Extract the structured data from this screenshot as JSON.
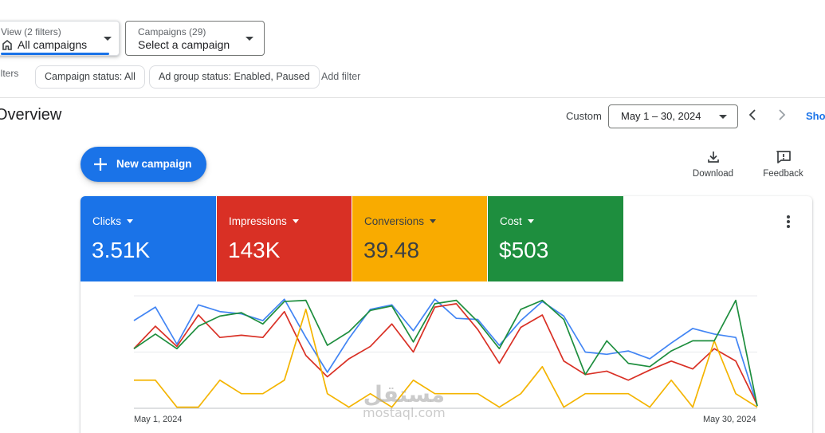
{
  "view_filter": {
    "label": "View (2 filters)",
    "value": "All campaigns",
    "icon": "building-icon"
  },
  "campaign_select": {
    "label": "Campaigns (29)",
    "value": "Select a campaign"
  },
  "filters": {
    "label": "ilters",
    "chips": [
      "Campaign status: All",
      "Ad group status: Enabled, Paused"
    ],
    "add_filter": "Add filter"
  },
  "overview": {
    "title": "Overview",
    "date_range_label": "Custom",
    "date_range_value": "May 1 – 30, 2024",
    "show_link": "Sho"
  },
  "actions": {
    "new_campaign": "New campaign",
    "download": "Download",
    "feedback": "Feedback"
  },
  "metrics": [
    {
      "label": "Clicks",
      "value": "3.51K",
      "color": "#1a73e8",
      "text_color": "#ffffff"
    },
    {
      "label": "Impressions",
      "value": "143K",
      "color": "#d93025",
      "text_color": "#ffffff"
    },
    {
      "label": "Conversions",
      "value": "39.48",
      "color": "#f9ab00",
      "text_color": "#3c4043"
    },
    {
      "label": "Cost",
      "value": "$503",
      "color": "#1e8e3e",
      "text_color": "#ffffff"
    }
  ],
  "chart_data": {
    "type": "line",
    "x_start_label": "May 1, 2024",
    "x_end_label": "May 30, 2024",
    "x": [
      1,
      2,
      3,
      4,
      5,
      6,
      7,
      8,
      9,
      10,
      11,
      12,
      13,
      14,
      15,
      16,
      17,
      18,
      19,
      20,
      21,
      22,
      23,
      24,
      25,
      26,
      27,
      28,
      29,
      30
    ],
    "ylim": [
      0,
      1
    ],
    "grid": true,
    "series": [
      {
        "name": "Clicks",
        "color": "#4285f4",
        "values": [
          0.78,
          0.9,
          0.57,
          0.92,
          0.86,
          0.84,
          0.78,
          0.97,
          0.63,
          0.32,
          0.62,
          0.88,
          0.92,
          0.69,
          0.97,
          0.8,
          0.79,
          0.56,
          0.78,
          0.95,
          0.82,
          0.5,
          0.48,
          0.51,
          0.44,
          0.58,
          0.71,
          0.66,
          0.63,
          0.02
        ]
      },
      {
        "name": "Impressions",
        "color": "#d93025",
        "values": [
          0.53,
          0.73,
          0.55,
          0.83,
          0.63,
          0.65,
          0.63,
          0.86,
          0.47,
          0.28,
          0.44,
          0.55,
          0.75,
          0.5,
          0.9,
          0.93,
          0.7,
          0.4,
          0.72,
          0.83,
          0.42,
          0.3,
          0.33,
          0.25,
          0.34,
          0.42,
          0.35,
          0.53,
          0.42,
          0.03
        ]
      },
      {
        "name": "Conversions",
        "color": "#f4b400",
        "values": [
          0.25,
          0.25,
          0.01,
          0.01,
          0.25,
          0.13,
          0.13,
          0.25,
          0.88,
          0.13,
          0.01,
          0.13,
          0.01,
          0.25,
          0.13,
          0.13,
          0.13,
          0.01,
          0.13,
          0.37,
          0.01,
          0.13,
          0.13,
          0.13,
          0.01,
          0.25,
          0.01,
          0.6,
          0.13,
          0.01
        ]
      },
      {
        "name": "Cost",
        "color": "#1e8e3e",
        "values": [
          0.53,
          0.66,
          0.53,
          0.73,
          0.82,
          0.85,
          0.75,
          0.95,
          0.96,
          0.56,
          0.68,
          0.87,
          0.91,
          0.59,
          0.93,
          0.96,
          0.77,
          0.53,
          0.88,
          0.96,
          0.79,
          0.3,
          0.6,
          0.4,
          0.37,
          0.51,
          0.6,
          0.6,
          0.96,
          0.02
        ]
      }
    ]
  }
}
